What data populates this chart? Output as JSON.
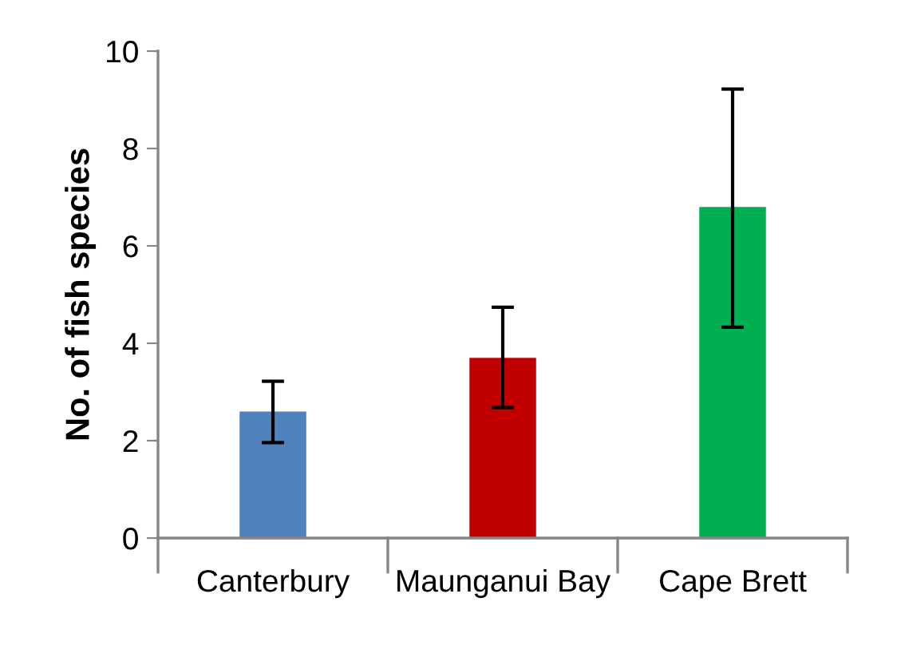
{
  "chart_data": {
    "type": "bar",
    "ylabel": "No. of fish species",
    "categories": [
      "Canterbury",
      "Maunganui Bay",
      "Cape Brett"
    ],
    "values": [
      2.6,
      3.7,
      6.8
    ],
    "colors": [
      "#4f81bd",
      "#c00000",
      "#00b050"
    ],
    "errors": [
      [
        1.96,
        3.22
      ],
      [
        2.68,
        4.74
      ],
      [
        4.33,
        9.22
      ]
    ],
    "ylim": [
      0,
      10
    ],
    "yticks": [
      0,
      2,
      4,
      6,
      8,
      10
    ],
    "grid": false,
    "legend": false
  }
}
